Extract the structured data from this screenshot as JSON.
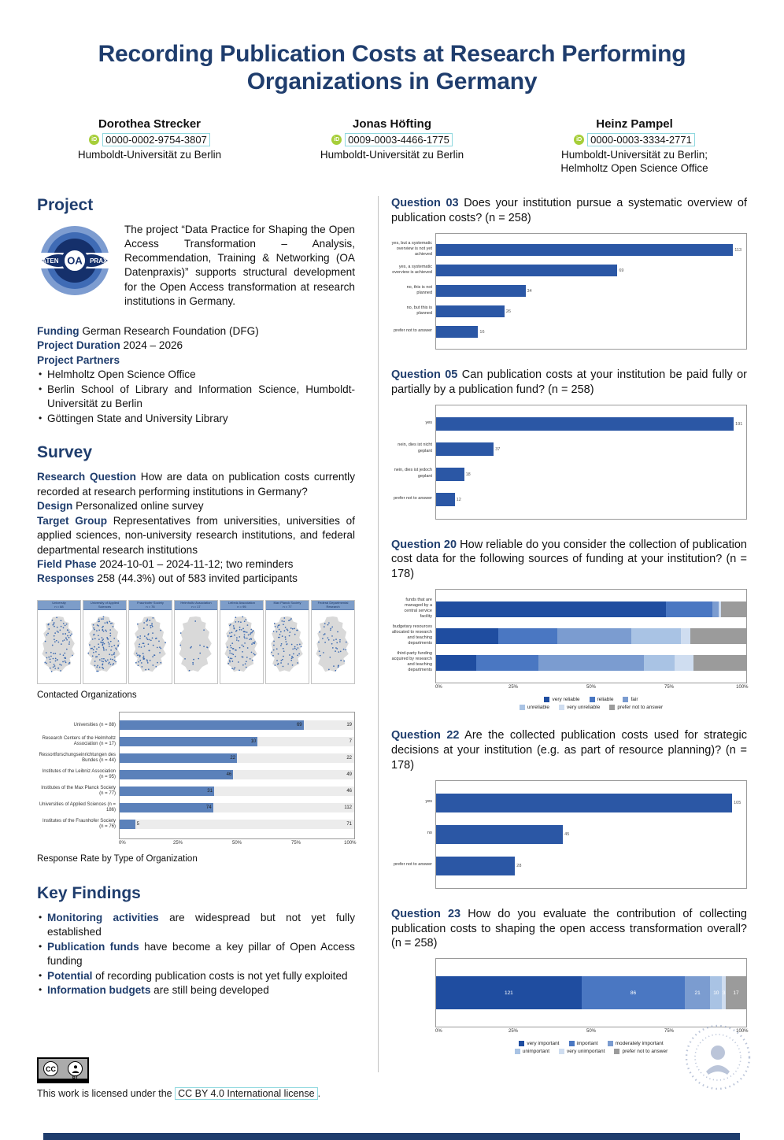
{
  "colors": {
    "navy": "#1f3d6d",
    "bar_blue": "#2b57a5",
    "bar_steel": "#5b81ba",
    "track_gray": "#ececec",
    "stack_palette": [
      "#1f4da0",
      "#4a77c2",
      "#7b9cd0",
      "#a9c3e4",
      "#cfddf0",
      "#9b9b9b"
    ],
    "orcid_green": "#a6ce39",
    "map_band_blue": "#7d9dc9",
    "map_dot_blue": "#3c6ab0"
  },
  "icons": {
    "orcid": "iD",
    "cc": "CC",
    "cc_by": "person"
  },
  "title": "Recording Publication Costs at Research Performing Organizations in Germany",
  "authors": [
    {
      "name": "Dorothea Strecker",
      "orcid": "0000-0002-9754-3807",
      "affiliations": [
        "Humboldt-Universität zu Berlin"
      ]
    },
    {
      "name": "Jonas Höfting",
      "orcid": "0009-0003-4466-1775",
      "affiliations": [
        "Humboldt-Universität zu Berlin"
      ]
    },
    {
      "name": "Heinz Pampel",
      "orcid": "0000-0003-3334-2771",
      "affiliations": [
        "Humboldt-Universität zu Berlin;",
        "Helmholtz Open Science Office"
      ]
    }
  ],
  "project": {
    "heading": "Project",
    "logo_words": [
      "DATEN",
      "OA",
      "PRAXIS"
    ],
    "description": "The project “Data Practice for Shaping the Open Access Transformation – Analysis, Recommendation, Training & Networking (OA Datenpraxis)” supports structural development for the Open Access transformation at research institutions in Germany.",
    "fields": [
      {
        "label": "Funding",
        "text": " German Research Foundation (DFG)"
      },
      {
        "label": "Project Duration",
        "text": " 2024 – 2026"
      },
      {
        "label": "Project Partners",
        "text": ""
      }
    ],
    "partners": [
      "Helmholtz Open Science Office",
      "Berlin School of Library and Information Science, Humboldt-Universität zu Berlin",
      "Göttingen State and University Library"
    ]
  },
  "survey": {
    "heading": "Survey",
    "fields": [
      {
        "label": "Research Question",
        "text": " How are data on publication costs currently recorded at research performing institutions in Germany?"
      },
      {
        "label": "Design",
        "text": " Personalized online survey"
      },
      {
        "label": "Target Group",
        "text": " Representatives from universities, universities of applied sciences, non-university research institutions, and federal departmental research institutions"
      },
      {
        "label": "Field Phase",
        "text": " 2024-10-01 – 2024-11-12; two reminders"
      },
      {
        "label": "Responses",
        "text": " 258 (44.3%) out of 583 invited participants"
      }
    ],
    "maps_caption": "Contacted Organizations",
    "response_caption": "Response Rate by Type of Organization"
  },
  "key_findings": {
    "heading": "Key Findings",
    "items": [
      {
        "lead": "Monitoring activities",
        "text": " are widespread but not yet fully established"
      },
      {
        "lead": "Publication funds",
        "text": " have become a key pillar of Open Access funding"
      },
      {
        "lead": "Potential",
        "text": " of recording publication costs is not yet fully exploited"
      },
      {
        "lead": "Information budgets",
        "text": " are still being developed"
      }
    ]
  },
  "questions": {
    "q03": {
      "label": "Question 03",
      "text": " Does your institution pursue a systematic overview of publication costs? (n = 258)"
    },
    "q05": {
      "label": "Question 05",
      "text": " Can publication costs at your institution be paid fully or partially by a publication fund? (n = 258)"
    },
    "q20": {
      "label": "Question 20",
      "text": " How reliable do you consider the collection of publication cost data for the following sources of funding at your institution? (n = 178)"
    },
    "q22": {
      "label": "Question 22",
      "text": " Are the collected publication costs used for strategic decisions at your institution (e.g. as part of resource planning)? (n = 178)"
    },
    "q23": {
      "label": "Question 23",
      "text": " How do you evaluate the contribution of collecting publication costs to shaping the open access transformation overall? (n = 258)"
    }
  },
  "footer": {
    "license_prefix": "This work is licensed under the ",
    "license_link": "CC BY 4.0 International license",
    "license_suffix": ".",
    "cc_by_label": "BY"
  },
  "chart_data": [
    {
      "id": "contacted_organizations",
      "type": "map-grid",
      "caption": "Contacted Organizations",
      "panels": [
        {
          "label": "University",
          "n": 88
        },
        {
          "label": "University of Applied Sciences",
          "n": 186
        },
        {
          "label": "Fraunhofer Society",
          "n": 76
        },
        {
          "label": "Helmholtz Association",
          "n": 17
        },
        {
          "label": "Leibniz Association",
          "n": 95
        },
        {
          "label": "Max Planck Society",
          "n": 77
        },
        {
          "label": "Federal Departmental Research",
          "n": 44
        }
      ]
    },
    {
      "id": "response_rate",
      "type": "bar",
      "caption": "Response Rate by Type of Organization",
      "categories": [
        "Universities (n = 88)",
        "Research Centers of the Helmholtz Association (n = 17)",
        "Ressortforschungseinrichtungen des Bundes (n = 44)",
        "Institutes of the Leibniz Association (n = 95)",
        "Institutes of the Max Planck Society (n = 77)",
        "Universities of Applied Sciences (n = 186)",
        "Institutes of the Fraunhofer Society (n = 76)"
      ],
      "series": [
        {
          "name": "responses",
          "values": [
            69,
            10,
            22,
            46,
            31,
            74,
            5
          ]
        },
        {
          "name": "no response",
          "values": [
            19,
            7,
            22,
            49,
            46,
            112,
            71
          ]
        }
      ],
      "x_ticks": [
        "0%",
        "25%",
        "50%",
        "75%",
        "100%"
      ],
      "unit": "share of contacted organizations"
    },
    {
      "id": "q03",
      "type": "bar",
      "categories": [
        "yes, but a systematic overview is not yet achieved",
        "yes, a systematic overview is achieved",
        "no, this is not planned",
        "no, but this is planned",
        "prefer not to answer"
      ],
      "values": [
        113,
        69,
        34,
        26,
        16
      ],
      "xlim": [
        0,
        118
      ]
    },
    {
      "id": "q05",
      "type": "bar",
      "categories": [
        "yes",
        "nein, dies ist nicht geplant",
        "nein, dies ist jedoch geplant",
        "prefer not to answer"
      ],
      "values": [
        191,
        37,
        18,
        12
      ],
      "xlim": [
        0,
        199
      ]
    },
    {
      "id": "q20",
      "type": "stacked-bar",
      "unit": "percent",
      "categories": [
        "funds that are managed by a central service facility",
        "budgetary resources allocated to research and teaching departments",
        "third-party funding acquired by research and teaching departments"
      ],
      "series": [
        {
          "name": "very reliable",
          "values": [
            74,
            20,
            13
          ]
        },
        {
          "name": "reliable",
          "values": [
            15,
            19,
            20
          ]
        },
        {
          "name": "fair",
          "values": [
            2,
            24,
            34
          ]
        },
        {
          "name": "unreliable",
          "values": [
            0,
            16,
            10
          ]
        },
        {
          "name": "very unreliable",
          "values": [
            1,
            3,
            6
          ]
        },
        {
          "name": "prefer not to answer",
          "values": [
            8,
            18,
            17
          ]
        }
      ],
      "x_ticks": [
        "0%",
        "25%",
        "50%",
        "75%",
        "100%"
      ],
      "legend_rows": [
        [
          "very reliable",
          "reliable",
          "fair"
        ],
        [
          "unreliable",
          "very unreliable",
          "prefer not to answer"
        ]
      ]
    },
    {
      "id": "q22",
      "type": "bar",
      "categories": [
        "yes",
        "no",
        "prefer not to answer"
      ],
      "values": [
        105,
        45,
        28
      ],
      "xlim": [
        0,
        110
      ]
    },
    {
      "id": "q23",
      "type": "stacked-bar",
      "unit": "count",
      "total": 258,
      "segments": [
        {
          "name": "very important",
          "value": 121
        },
        {
          "name": "important",
          "value": 86
        },
        {
          "name": "moderately important",
          "value": 21
        },
        {
          "name": "unimportant",
          "value": 10
        },
        {
          "name": "very unimportant",
          "value": 3
        },
        {
          "name": "prefer not to answer",
          "value": 17
        }
      ],
      "x_ticks": [
        "0%",
        "25%",
        "50%",
        "75%",
        "100%"
      ],
      "legend_rows": [
        [
          "very important",
          "important",
          "moderately important"
        ],
        [
          "unimportant",
          "very unimportant",
          "prefer not to answer"
        ]
      ]
    }
  ]
}
